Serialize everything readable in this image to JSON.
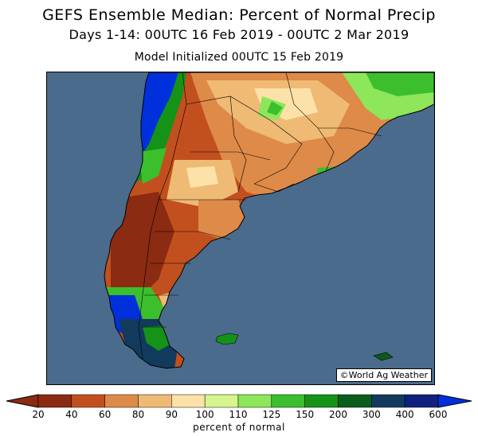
{
  "header": {
    "title": "GEFS Ensemble Median: Percent of Normal Precip",
    "subtitle": "Days 1-14: 00UTC 16 Feb 2019 - 00UTC 2 Mar 2019",
    "init": "Model Initialized 00UTC 15 Feb 2019"
  },
  "map": {
    "credit": "©World Ag Weather",
    "ocean_color": "#4a6b8b",
    "region": "Southern South America"
  },
  "colorbar": {
    "label": "percent of normal",
    "ticks": [
      "20",
      "40",
      "60",
      "80",
      "90",
      "100",
      "110",
      "125",
      "150",
      "200",
      "300",
      "400",
      "600"
    ],
    "colors": [
      "#8a2b12",
      "#c2501e",
      "#de8a48",
      "#efba74",
      "#fce2a8",
      "#d6f58e",
      "#8ee65a",
      "#3cbf2c",
      "#149318",
      "#0a5c1a",
      "#123a5c",
      "#10207e",
      "#0030dc"
    ]
  }
}
